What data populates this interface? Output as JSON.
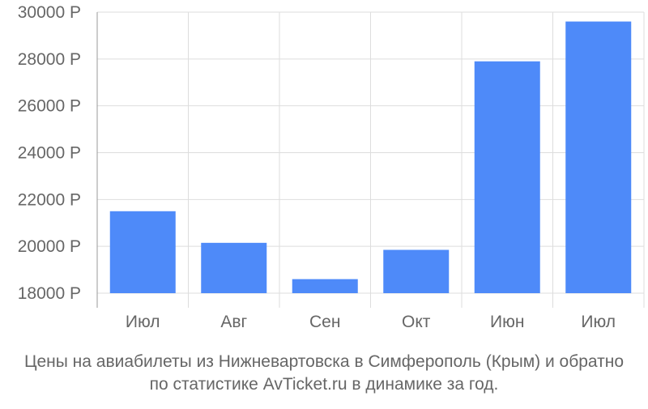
{
  "chart_data": {
    "type": "bar",
    "categories": [
      "Июл",
      "Авг",
      "Сен",
      "Окт",
      "Июн",
      "Июл"
    ],
    "series": [
      {
        "values": [
          21500,
          20150,
          18600,
          19850,
          27900,
          29600
        ]
      }
    ],
    "ylim": [
      18000,
      30000
    ],
    "yticks": [
      18000,
      20000,
      22000,
      24000,
      26000,
      28000,
      30000
    ],
    "ytick_labels": [
      "18000 Р",
      "20000 Р",
      "22000 Р",
      "24000 Р",
      "26000 Р",
      "28000 Р",
      "30000 Р"
    ],
    "grid": true,
    "legend": "none",
    "colors": {
      "bar": "#4e8af9",
      "grid": "#dddddd",
      "axis": "#999999",
      "text": "#666666"
    }
  },
  "caption": {
    "line1": "Цены на авиабилеты из Нижневартовска в Симферополь (Крым) и обратно",
    "line2": "по статистике AvTicket.ru в динамике за год."
  }
}
